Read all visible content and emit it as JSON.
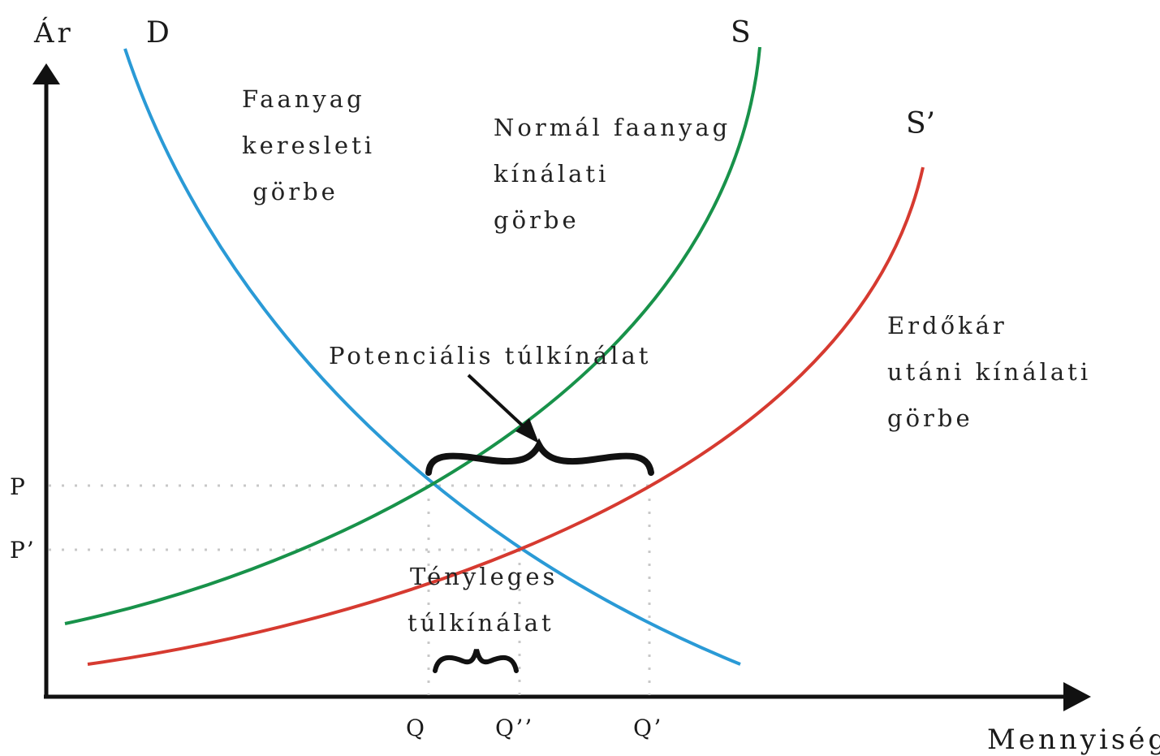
{
  "colors": {
    "demand": "#2a9ad6",
    "supply": "#18924a",
    "supply_after": "#d63a30",
    "axis": "#111111",
    "guide": "#c8c8c8"
  },
  "axes": {
    "y_label": "Ár",
    "x_label": "Mennyiség"
  },
  "curves": {
    "demand": {
      "name": "D",
      "description_lines": [
        "Faanyag",
        "keresleti",
        " görbe"
      ]
    },
    "supply": {
      "name": "S",
      "description_lines": [
        "Normál faanyag",
        "kínálati",
        "görbe"
      ]
    },
    "supply_after": {
      "name": "S’",
      "description_lines": [
        "Erdőkár",
        "utáni kínálati",
        "görbe"
      ]
    }
  },
  "y_ticks": [
    "P",
    "P’"
  ],
  "x_ticks": [
    "Q",
    "Q’’",
    "Q’"
  ],
  "annotations": {
    "potential_surplus": "Potenciális túlkínálat",
    "actual_surplus_lines": [
      "Tényleges",
      "túlkínálat"
    ]
  }
}
